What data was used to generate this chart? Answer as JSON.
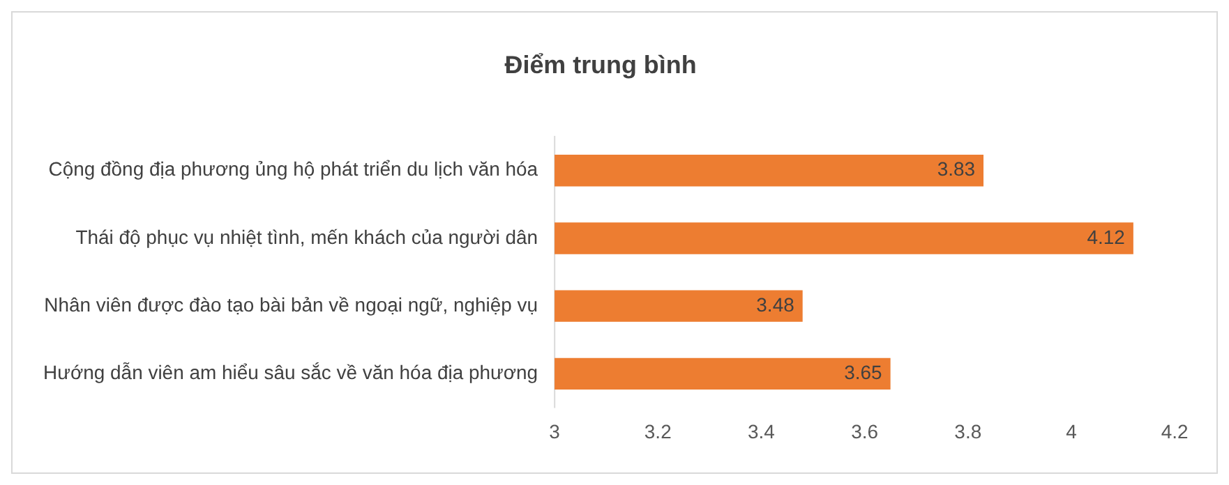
{
  "chart_data": {
    "type": "bar",
    "orientation": "horizontal",
    "title": "Điểm trung bình",
    "categories": [
      "Cộng đồng địa phương ủng hộ phát triển du lịch văn hóa",
      "Thái độ phục vụ nhiệt tình, mến khách của người dân",
      "Nhân viên được đào tạo bài bản về ngoại ngữ, nghiệp vụ",
      "Hướng dẫn viên am hiểu sâu sắc về văn hóa địa phương"
    ],
    "values": [
      3.83,
      4.12,
      3.48,
      3.65
    ],
    "color": "#ed7d31",
    "xlim": [
      3,
      4.2
    ],
    "xticks": [
      3,
      3.2,
      3.4,
      3.6,
      3.8,
      4,
      4.2
    ],
    "data_labels": true,
    "grid": false,
    "legend": false
  }
}
